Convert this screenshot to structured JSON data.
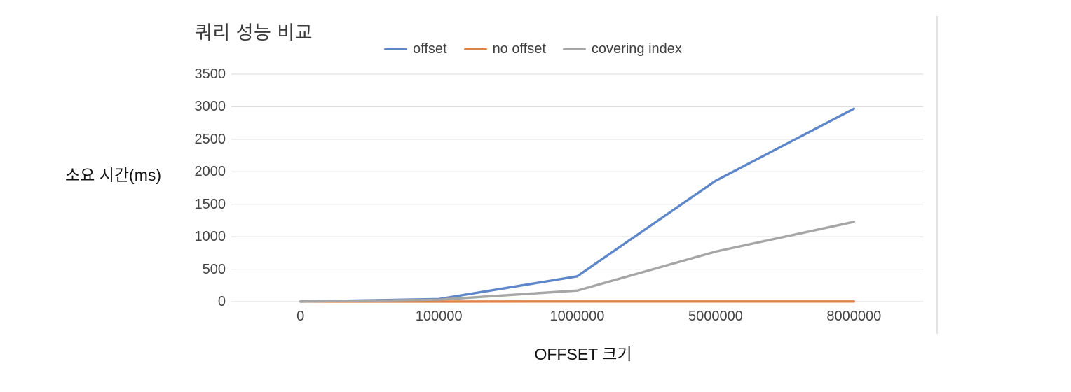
{
  "chart_data": {
    "type": "line",
    "title": "쿼리 성능 비교",
    "xlabel": "OFFSET 크기",
    "ylabel": "소요 시간(ms)",
    "categories": [
      "0",
      "100000",
      "1000000",
      "5000000",
      "8000000"
    ],
    "series": [
      {
        "name": "offset",
        "color": "#5E87C9",
        "values": [
          1,
          40,
          390,
          1860,
          2970
        ]
      },
      {
        "name": "no offset",
        "color": "#DF8244",
        "values": [
          1,
          1,
          2,
          2,
          2
        ]
      },
      {
        "name": "covering index",
        "color": "#A6A6A6",
        "values": [
          1,
          30,
          170,
          770,
          1230
        ]
      }
    ],
    "yticks": [
      0,
      500,
      1000,
      1500,
      2000,
      2500,
      3000,
      3500
    ],
    "ylim": [
      0,
      3500
    ],
    "grid": true,
    "gridline_color": "#d9d9d9",
    "legend_position": "top"
  }
}
